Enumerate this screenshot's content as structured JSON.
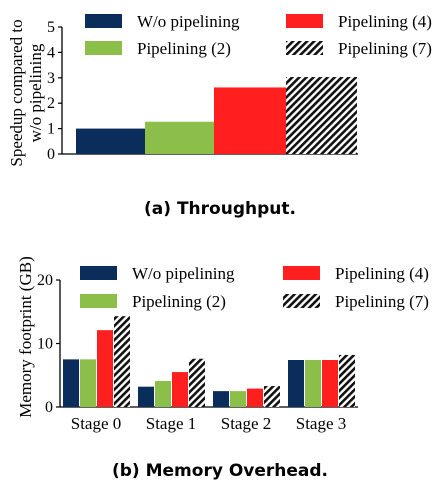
{
  "palette": {
    "wo": "#0b2d5c",
    "p2": "#8cbf4a",
    "p4": "#ff1f1f",
    "p7_fg": "#111111",
    "p7_bg": "#ffffff",
    "axis": "#000000"
  },
  "legend_labels": [
    "W/o pipelining",
    "Pipelining (2)",
    "Pipelining (4)",
    "Pipelining (7)"
  ],
  "chart_data": [
    {
      "type": "bar",
      "caption": "(a) Throughput.",
      "ylabel": "Speedup compared to w/o pipelining",
      "ylabel_lines": [
        "Speedup compared to",
        "w/o pipelining"
      ],
      "ylim": [
        0,
        5
      ],
      "yticks": [
        0,
        1,
        2,
        3,
        4,
        5
      ],
      "legend": "top",
      "series": [
        {
          "name": "W/o pipelining",
          "value": 1.0
        },
        {
          "name": "Pipelining (2)",
          "value": 1.27
        },
        {
          "name": "Pipelining (4)",
          "value": 2.62
        },
        {
          "name": "Pipelining (7)",
          "value": 3.03
        }
      ]
    },
    {
      "type": "bar",
      "caption": "(b) Memory Overhead.",
      "ylabel": "Memory footprint (GB)",
      "ylim": [
        0,
        20
      ],
      "yticks": [
        0,
        10,
        20
      ],
      "legend": "top",
      "categories": [
        "Stage 0",
        "Stage 1",
        "Stage 2",
        "Stage 3"
      ],
      "series": [
        {
          "name": "W/o pipelining",
          "values": [
            7.5,
            3.2,
            2.5,
            7.4
          ]
        },
        {
          "name": "Pipelining (2)",
          "values": [
            7.5,
            4.1,
            2.5,
            7.4
          ]
        },
        {
          "name": "Pipelining (4)",
          "values": [
            12.1,
            5.5,
            2.9,
            7.4
          ]
        },
        {
          "name": "Pipelining (7)",
          "values": [
            14.3,
            7.6,
            3.3,
            8.2
          ]
        }
      ]
    }
  ]
}
